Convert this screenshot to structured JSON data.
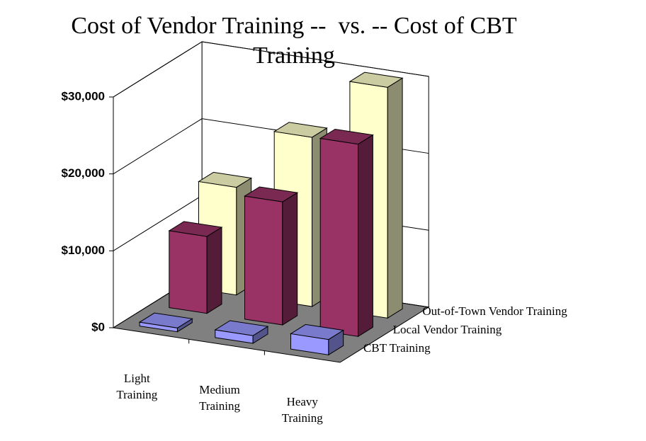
{
  "chart_data": {
    "type": "bar3d",
    "title": "Cost of Vendor Training --  vs. -- Cost of CBT Training",
    "categories": [
      "Light Training",
      "Medium Training",
      "Heavy Training"
    ],
    "series": [
      {
        "name": "CBT Training",
        "color": "#9999ff",
        "values": [
          500,
          1000,
          2000
        ]
      },
      {
        "name": "Local Vendor Training",
        "color": "#993366",
        "values": [
          10000,
          16000,
          25000
        ]
      },
      {
        "name": "Out-of-Town Vendor Training",
        "color": "#ffffcc",
        "values": [
          14000,
          22000,
          30000
        ]
      }
    ],
    "ylim": [
      0,
      30000
    ],
    "yticks": [
      {
        "value": 0,
        "label": "$0"
      },
      {
        "value": 10000,
        "label": "$10,000"
      },
      {
        "value": 20000,
        "label": "$20,000"
      },
      {
        "value": 30000,
        "label": "$30,000"
      }
    ],
    "grid": true
  }
}
